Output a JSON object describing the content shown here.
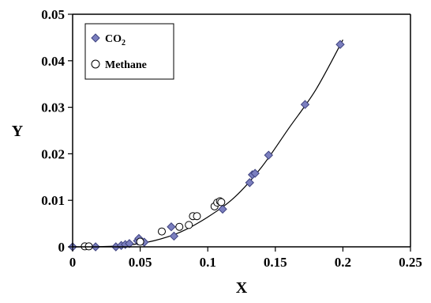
{
  "chart_data": {
    "type": "scatter",
    "title": "",
    "xlabel": "X",
    "ylabel": "Y",
    "xlim": [
      0,
      0.25
    ],
    "ylim": [
      0,
      0.05
    ],
    "x_ticks": [
      0,
      0.05,
      0.1,
      0.15,
      0.2,
      0.25
    ],
    "x_tick_labels": [
      "0",
      "0.05",
      "0.1",
      "0.15",
      "0.2",
      "0.25"
    ],
    "y_ticks": [
      0,
      0.01,
      0.02,
      0.03,
      0.04,
      0.05
    ],
    "y_tick_labels": [
      "0",
      "0.01",
      "0.02",
      "0.03",
      "0.04",
      "0.05"
    ],
    "grid": false,
    "legend_position": "top-left",
    "series": [
      {
        "name": "CO2",
        "marker": "diamond",
        "color": "#7b7fbf",
        "edge_color": "#3f4380",
        "points": [
          [
            0.0,
            0.0
          ],
          [
            0.017,
            0.0
          ],
          [
            0.032,
            0.0
          ],
          [
            0.036,
            0.0003
          ],
          [
            0.039,
            0.0005
          ],
          [
            0.042,
            0.0007
          ],
          [
            0.048,
            0.0013
          ],
          [
            0.049,
            0.0018
          ],
          [
            0.053,
            0.001
          ],
          [
            0.073,
            0.0043
          ],
          [
            0.075,
            0.0023
          ],
          [
            0.111,
            0.0081
          ],
          [
            0.131,
            0.0138
          ],
          [
            0.133,
            0.0155
          ],
          [
            0.135,
            0.0158
          ],
          [
            0.145,
            0.0197
          ],
          [
            0.172,
            0.0306
          ],
          [
            0.198,
            0.0435
          ]
        ]
      },
      {
        "name": "Methane",
        "marker": "circle",
        "color": "#ffffff",
        "edge_color": "#000000",
        "points": [
          [
            0.009,
            0.0001
          ],
          [
            0.012,
            0.0001
          ],
          [
            0.05,
            0.0011
          ],
          [
            0.066,
            0.0033
          ],
          [
            0.079,
            0.0043
          ],
          [
            0.086,
            0.0047
          ],
          [
            0.089,
            0.0066
          ],
          [
            0.092,
            0.0066
          ],
          [
            0.105,
            0.0087
          ],
          [
            0.107,
            0.0095
          ],
          [
            0.109,
            0.0098
          ],
          [
            0.11,
            0.0096
          ]
        ]
      }
    ],
    "fit_curve": {
      "color": "#000000",
      "points": [
        [
          0.0,
          0.0
        ],
        [
          0.02,
          5e-05
        ],
        [
          0.04,
          0.00035
        ],
        [
          0.06,
          0.0013
        ],
        [
          0.08,
          0.0032
        ],
        [
          0.1,
          0.0064
        ],
        [
          0.12,
          0.0107
        ],
        [
          0.14,
          0.0172
        ],
        [
          0.16,
          0.0255
        ],
        [
          0.18,
          0.0338
        ],
        [
          0.2,
          0.0445
        ]
      ]
    }
  },
  "legend": {
    "co2_label_main": "CO",
    "co2_label_sub": "2",
    "methane_label": "Methane"
  }
}
